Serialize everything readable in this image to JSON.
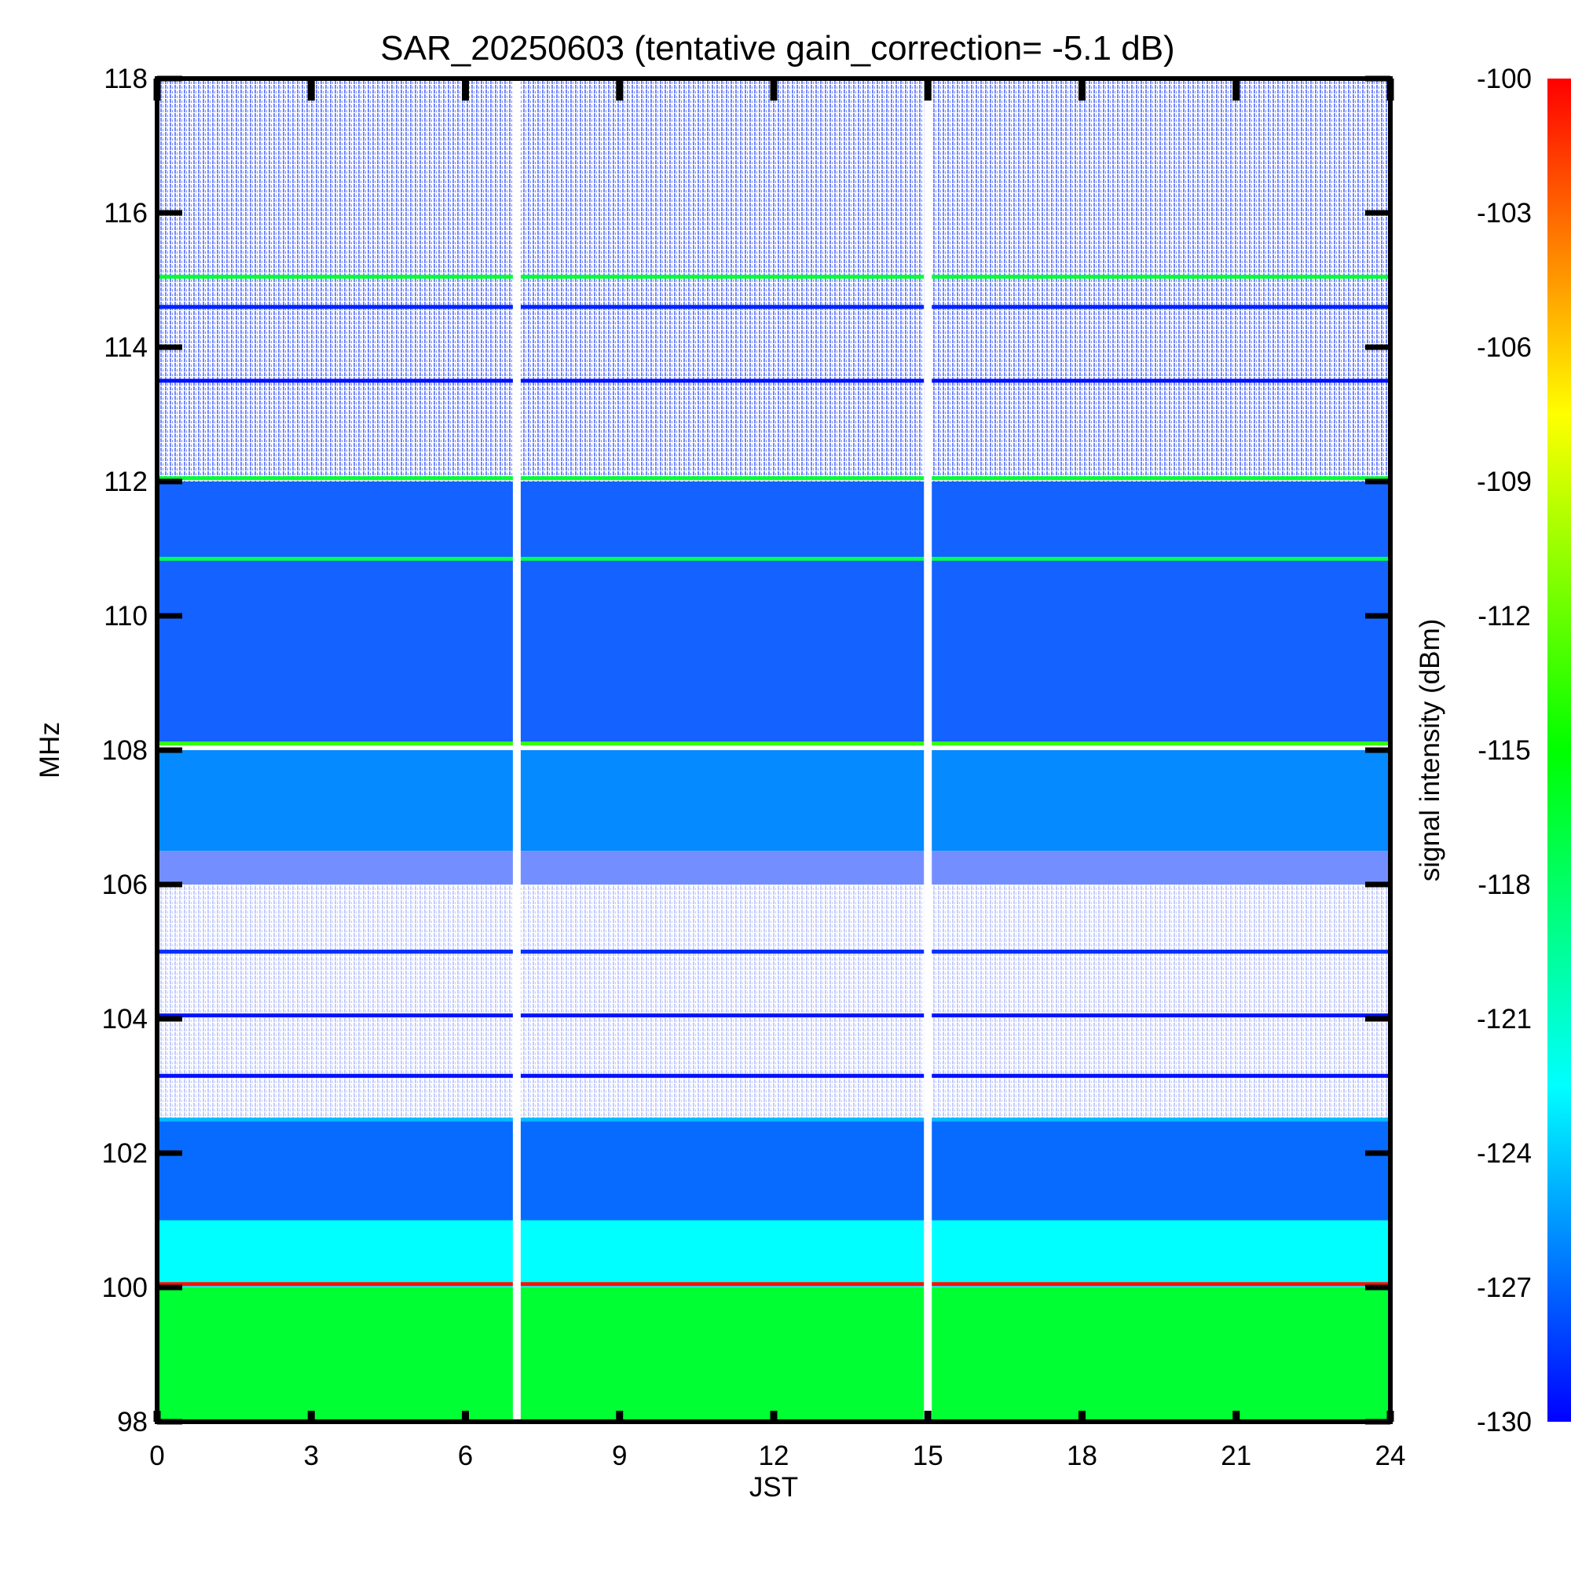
{
  "chart_data": {
    "type": "heatmap",
    "title": "SAR_20250603 (tentative gain_correction= -5.1 dB)",
    "xlabel": "JST",
    "ylabel": "MHz",
    "xlim": [
      0,
      24
    ],
    "ylim": [
      98,
      118
    ],
    "x_ticks": [
      "0",
      "3",
      "6",
      "9",
      "12",
      "15",
      "18",
      "21",
      "24"
    ],
    "y_ticks": [
      "98",
      "100",
      "102",
      "104",
      "106",
      "108",
      "110",
      "112",
      "114",
      "116",
      "118"
    ],
    "colorbar": {
      "label": "signal intensity (dBm)",
      "range": [
        -130,
        -100
      ],
      "ticks": [
        "-100",
        "-103",
        "-106",
        "-109",
        "-112",
        "-115",
        "-118",
        "-121",
        "-124",
        "-127",
        "-130"
      ],
      "colors": [
        "#0000ff",
        "#0080ff",
        "#00ffff",
        "#00ff80",
        "#00ff00",
        "#80ff00",
        "#ffff00",
        "#ff8000",
        "#ff0000"
      ]
    },
    "data_gaps_jst": [
      7.0,
      15.0
    ],
    "frequency_bands": [
      {
        "from": 98.0,
        "to": 100.0,
        "level_dbm": -116.5,
        "density": 1.0
      },
      {
        "from": 100.0,
        "to": 101.0,
        "level_dbm": -122.5,
        "density": 1.0
      },
      {
        "from": 101.0,
        "to": 102.5,
        "level_dbm": -127.0,
        "density": 0.97
      },
      {
        "from": 102.5,
        "to": 106.0,
        "level_dbm": -129.0,
        "density": 0.12
      },
      {
        "from": 106.0,
        "to": 106.5,
        "level_dbm": -128.5,
        "density": 0.55
      },
      {
        "from": 106.5,
        "to": 108.0,
        "level_dbm": -126.0,
        "density": 0.98
      },
      {
        "from": 108.1,
        "to": 112.0,
        "level_dbm": -127.5,
        "density": 0.92
      },
      {
        "from": 112.0,
        "to": 118.0,
        "level_dbm": -129.0,
        "density": 0.28
      }
    ],
    "carrier_lines": [
      {
        "freq": 100.05,
        "level_dbm": -100.5
      },
      {
        "freq": 108.1,
        "level_dbm": -113.5
      },
      {
        "freq": 112.05,
        "level_dbm": -116.5
      },
      {
        "freq": 115.05,
        "level_dbm": -116.5
      },
      {
        "freq": 110.85,
        "level_dbm": -117.5
      },
      {
        "freq": 102.5,
        "level_dbm": -124.5
      },
      {
        "freq": 105.0,
        "level_dbm": -128.5
      },
      {
        "freq": 104.05,
        "level_dbm": -129.5
      },
      {
        "freq": 103.15,
        "level_dbm": -129.5
      },
      {
        "freq": 113.5,
        "level_dbm": -129.5
      },
      {
        "freq": 114.6,
        "level_dbm": -129.0
      }
    ]
  }
}
